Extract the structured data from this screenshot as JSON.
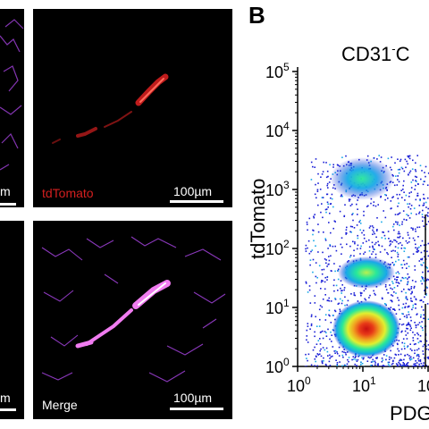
{
  "figure": {
    "panel_letter": "B",
    "colors": {
      "background": "#000000",
      "tdtomato": "#d41f1f",
      "merge_vessel": "#f07cf0",
      "network": "#9a3fd0",
      "scale": "#ffffff"
    },
    "micrographs": [
      {
        "id": "top-left",
        "scale_text": "m"
      },
      {
        "id": "top-right",
        "label": "tdTomato",
        "label_color": "#d41f1f",
        "scale_text": "100µm"
      },
      {
        "id": "bottom-left",
        "scale_text": "m"
      },
      {
        "id": "bottom-right",
        "label": "Merge",
        "label_color": "#ffffff",
        "scale_text": "100µm"
      }
    ],
    "flow": {
      "title": "CD31",
      "title_sup": "-",
      "title_tail": "C",
      "ylabel": "tdTomato",
      "xlabel": "PDG",
      "density_colors": [
        "#1a1fd6",
        "#18a9e8",
        "#28e89a",
        "#f0f030",
        "#f07a1a",
        "#e01818"
      ]
    }
  },
  "chart_data": {
    "type": "scatter",
    "title": "CD31-C",
    "xlabel": "PDG",
    "ylabel": "tdTomato",
    "xscale": "log",
    "yscale": "log",
    "xlim": [
      1,
      100
    ],
    "ylim": [
      1,
      100000
    ],
    "x_ticks": [
      "10^0",
      "10^1",
      "10^"
    ],
    "y_ticks": [
      "10^0",
      "10^1",
      "10^2",
      "10^3",
      "10^4",
      "10^5"
    ],
    "density_clusters": [
      {
        "x": 11,
        "y": 4,
        "label": "dense (red/orange core)"
      },
      {
        "x": 9,
        "y": 30,
        "label": "medium (green)"
      },
      {
        "x": 13,
        "y": 1300,
        "label": "low (blue/green)"
      }
    ]
  }
}
